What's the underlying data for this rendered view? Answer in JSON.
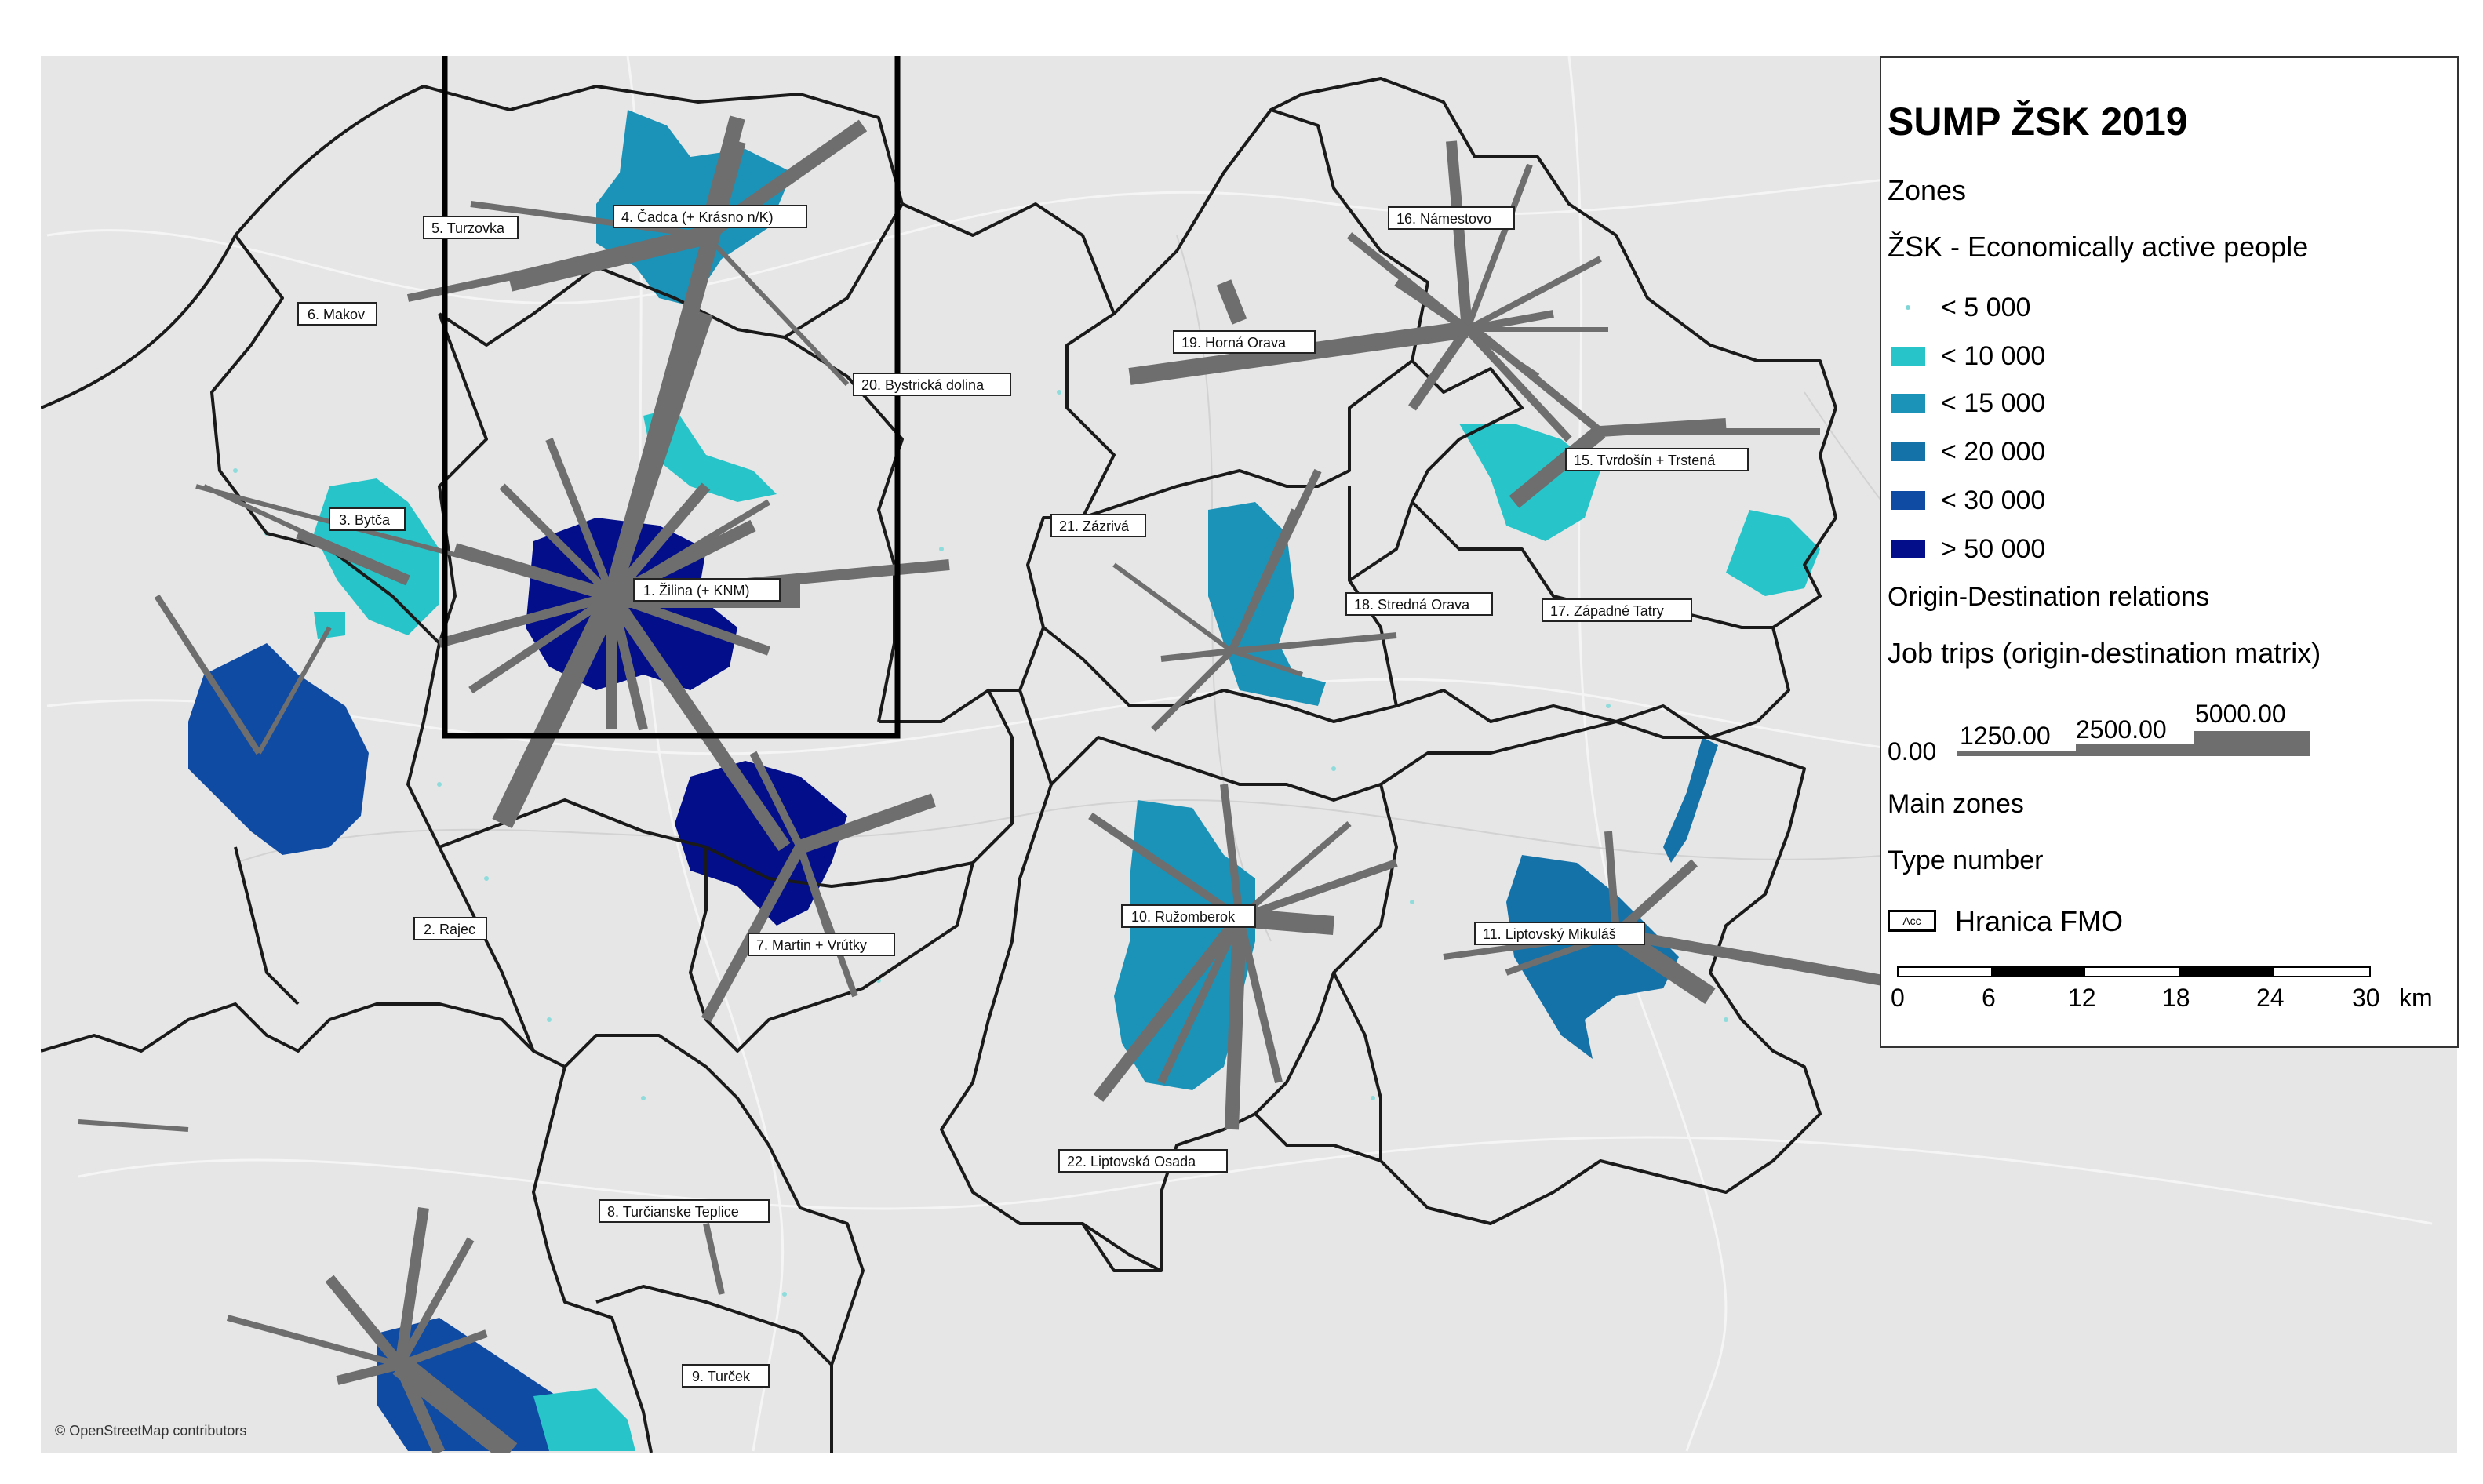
{
  "map": {
    "attribution": "© OpenStreetMap contributors",
    "fmo_boundary_color": "#000000",
    "od_line_color": "#6e6e6e",
    "zone_border_color": "#1a1a1a",
    "basemap_color": "#e6e6e6",
    "zones": [
      {
        "label": "1. Žilina (+ KNM)",
        "fill_class": "> 50 000"
      },
      {
        "label": "2. Rajec",
        "fill_class": "< 5 000"
      },
      {
        "label": "3. Bytča",
        "fill_class": "< 10 000"
      },
      {
        "label": "4. Čadca (+ Krásno n/K)",
        "fill_class": "< 15 000"
      },
      {
        "label": "5. Turzovka",
        "fill_class": "< 5 000"
      },
      {
        "label": "6. Makov",
        "fill_class": "< 5 000"
      },
      {
        "label": "7. Martin + Vrútky",
        "fill_class": "> 50 000"
      },
      {
        "label": "8. Turčianske Teplice",
        "fill_class": "< 5 000"
      },
      {
        "label": "9. Turček",
        "fill_class": "< 5 000"
      },
      {
        "label": "10. Ružomberok",
        "fill_class": "< 15 000"
      },
      {
        "label": "11. Liptovský Mikuláš",
        "fill_class": "< 20 000"
      },
      {
        "label": "15. Tvrdošín + Trstená",
        "fill_class": "< 10 000"
      },
      {
        "label": "16. Námestovo",
        "fill_class": "< 5 000"
      },
      {
        "label": "17. Západné Tatry",
        "fill_class": "< 5 000"
      },
      {
        "label": "18. Stredná Orava",
        "fill_class": "< 5 000"
      },
      {
        "label": "19. Horná Orava",
        "fill_class": "< 5 000"
      },
      {
        "label": "20. Bystrická dolina",
        "fill_class": "< 5 000"
      },
      {
        "label": "21. Zázrivá",
        "fill_class": "< 5 000"
      },
      {
        "label": "22. Liptovská Osada",
        "fill_class": "< 5 000"
      }
    ]
  },
  "legend": {
    "title": "SUMP ŽSK 2019",
    "zones_heading": "Zones",
    "econ_heading": "ŽSK - Economically active people",
    "classes": [
      {
        "label": "< 5 000",
        "color": "#7fd6d6",
        "symbol": "dot"
      },
      {
        "label": "< 10 000",
        "color": "#27c4c9"
      },
      {
        "label": "< 15 000",
        "color": "#1b93b8"
      },
      {
        "label": "< 20 000",
        "color": "#1572a8"
      },
      {
        "label": "< 30 000",
        "color": "#0f4aa3"
      },
      {
        "label": "> 50 000",
        "color": "#020e8a"
      }
    ],
    "od_heading": "Origin-Destination relations",
    "job_trips_heading": "Job trips (origin-destination matrix)",
    "job_trip_classes": [
      "0.00",
      "1250.00",
      "2500.00",
      "5000.00"
    ],
    "main_zones": "Main zones",
    "type_number": "Type number",
    "fmo_icon_text": "Acc",
    "fmo_label": "Hranica FMO",
    "scale_ticks": [
      "0",
      "6",
      "12",
      "18",
      "24",
      "30"
    ],
    "scale_unit": "km"
  }
}
